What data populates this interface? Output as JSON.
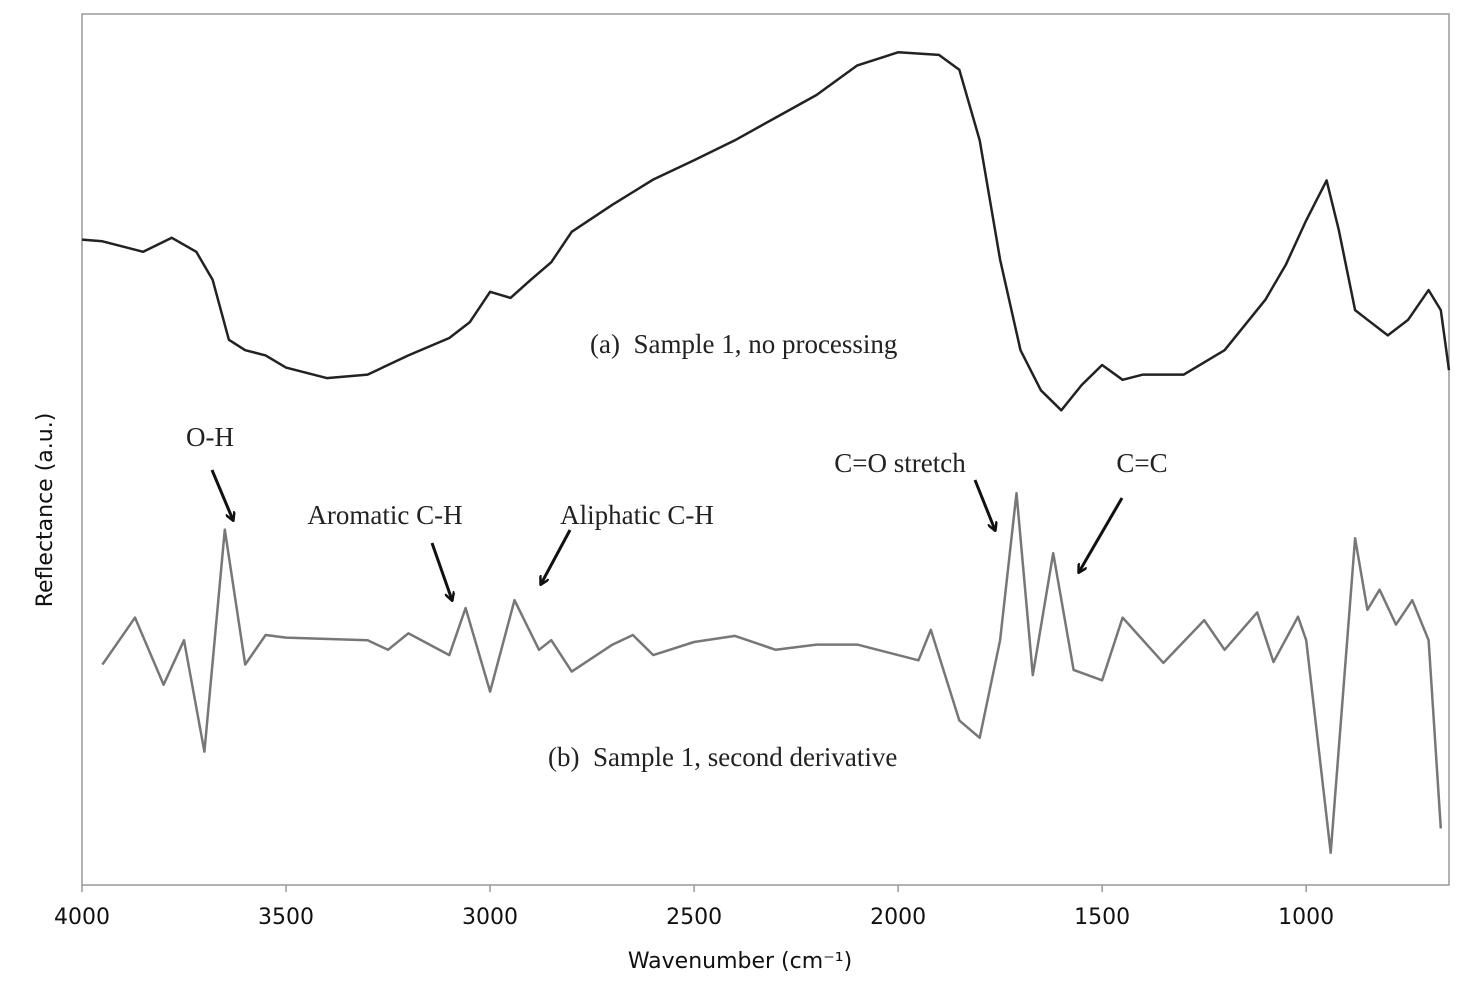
{
  "chart_data": {
    "type": "line",
    "xlabel": "Wavenumber (cm⁻¹)",
    "ylabel": "Reflectance (a.u.)",
    "xlim": [
      4000,
      650
    ],
    "xticks": [
      4000,
      3500,
      3000,
      2500,
      2000,
      1500,
      1000
    ],
    "ylim": [
      0,
      100
    ],
    "annotations": [
      "(a)  Sample 1, no processing",
      "(b)  Sample 1, second derivative",
      "O-H",
      "Aromatic C-H",
      "Aliphatic C-H",
      "C=O stretch",
      "C=C"
    ],
    "series": [
      {
        "color": "#222222",
        "x": [
          4000,
          3950,
          3850,
          3780,
          3720,
          3680,
          3640,
          3600,
          3550,
          3500,
          3400,
          3300,
          3200,
          3100,
          3050,
          3000,
          2950,
          2900,
          2850,
          2800,
          2700,
          2600,
          2500,
          2400,
          2300,
          2200,
          2100,
          2000,
          1900,
          1850,
          1800,
          1750,
          1700,
          1650,
          1600,
          1550,
          1500,
          1450,
          1400,
          1300,
          1200,
          1100,
          1050,
          1000,
          950,
          920,
          880,
          850,
          800,
          750,
          700,
          670,
          650
        ],
        "values": [
          74.1,
          73.9,
          72.7,
          74.3,
          72.7,
          69.5,
          62.6,
          61.4,
          60.8,
          59.4,
          58.2,
          58.6,
          60.8,
          62.8,
          64.6,
          68.1,
          67.4,
          69.5,
          71.5,
          75.0,
          78.1,
          81.0,
          83.2,
          85.5,
          88.1,
          90.7,
          94.1,
          95.6,
          95.3,
          93.6,
          85.5,
          71.8,
          61.4,
          56.8,
          54.5,
          57.4,
          59.7,
          58.0,
          58.6,
          58.6,
          61.4,
          67.2,
          71.2,
          76.3,
          80.9,
          75.2,
          66.0,
          64.9,
          63.1,
          64.9,
          68.3,
          66.0,
          59.1
        ]
      },
      {
        "color": "#777777",
        "x": [
          3950,
          3870,
          3800,
          3750,
          3700,
          3650,
          3600,
          3550,
          3500,
          3300,
          3250,
          3200,
          3100,
          3060,
          3000,
          2940,
          2880,
          2850,
          2800,
          2700,
          2650,
          2600,
          2500,
          2400,
          2300,
          2200,
          2100,
          1950,
          1920,
          1850,
          1800,
          1750,
          1710,
          1670,
          1620,
          1570,
          1500,
          1450,
          1350,
          1250,
          1200,
          1120,
          1080,
          1020,
          1000,
          940,
          880,
          850,
          820,
          780,
          740,
          700,
          670
        ],
        "values": [
          25.3,
          30.7,
          23.0,
          28.1,
          15.3,
          40.8,
          25.3,
          28.7,
          28.4,
          28.1,
          27.0,
          28.9,
          26.4,
          31.8,
          22.2,
          32.7,
          27.0,
          28.1,
          24.5,
          27.6,
          28.7,
          26.4,
          27.9,
          28.6,
          27.0,
          27.6,
          27.6,
          25.8,
          29.3,
          18.9,
          16.9,
          28.1,
          45.0,
          24.1,
          38.1,
          24.7,
          23.5,
          30.7,
          25.5,
          30.4,
          27.0,
          31.3,
          25.6,
          30.8,
          28.1,
          3.7,
          39.8,
          31.6,
          33.9,
          29.9,
          32.7,
          28.1,
          6.5
        ]
      }
    ]
  }
}
